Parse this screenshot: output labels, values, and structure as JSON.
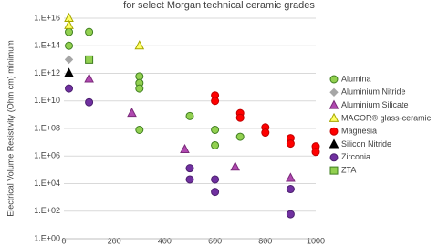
{
  "chart_data": {
    "type": "scatter",
    "title": "for select Morgan technical ceramic grades",
    "y_label": "Electrical Volume Resistivity (Ohm cm) minimum",
    "log_y": true,
    "grid": true,
    "legend": "right",
    "xlim": [
      0,
      1000
    ],
    "xticks": [
      0,
      200,
      400,
      600,
      800,
      1000
    ],
    "ylim": [
      1,
      10000000000000000
    ],
    "yticks": [
      {
        "value": 1,
        "label": "1.E+00"
      },
      {
        "value": 100,
        "label": "1.E+02"
      },
      {
        "value": 10000,
        "label": "1.E+04"
      },
      {
        "value": 1000000,
        "label": "1.E+06"
      },
      {
        "value": 100000000,
        "label": "1.E+08"
      },
      {
        "value": 10000000000,
        "label": "1.E+10"
      },
      {
        "value": 1000000000000,
        "label": "1.E+12"
      },
      {
        "value": 100000000000000,
        "label": "1.E+14"
      },
      {
        "value": 10000000000000000,
        "label": "1.E+16"
      }
    ],
    "series": [
      {
        "name": "Alumina",
        "color": "#92d050",
        "stroke": "#3e7d1f",
        "marker": "circle",
        "x": [
          20,
          20,
          100,
          300,
          300,
          300,
          300,
          500,
          600,
          600,
          700
        ],
        "values": [
          1000000000000000,
          100000000000000,
          1000000000000000,
          600000000000,
          200000000000,
          80000000000,
          80000000,
          800000000,
          80000000,
          6000000,
          25000000
        ]
      },
      {
        "name": "Aluminium Nitride",
        "color": "#a6a6a6",
        "stroke": "#a6a6a6",
        "marker": "diamond",
        "x": [
          20
        ],
        "values": [
          10000000000000
        ]
      },
      {
        "name": "Aluminium Silicate",
        "color": "#b048b0",
        "stroke": "#7a2a7a",
        "marker": "triangle",
        "x": [
          100,
          270,
          480,
          680,
          900
        ],
        "values": [
          400000000000,
          1300000000,
          3000000,
          160000,
          25000
        ]
      },
      {
        "name": "MACOR® glass-ceramic",
        "color": "#ffff66",
        "stroke": "#a6a600",
        "marker": "triangle",
        "x": [
          20,
          20,
          300
        ],
        "values": [
          10000000000000000,
          3000000000000000,
          100000000000000
        ]
      },
      {
        "name": "Magnesia",
        "color": "#ff0000",
        "stroke": "#c00000",
        "marker": "circle",
        "x": [
          600,
          600,
          700,
          700,
          800,
          800,
          900,
          900,
          1000,
          1000
        ],
        "values": [
          25000000000,
          10000000000,
          1300000000,
          600000000,
          120000000,
          50000000,
          20000000,
          8000000,
          5000000,
          2000000
        ]
      },
      {
        "name": "Silicon Nitride",
        "color": "#000000",
        "stroke": "#000000",
        "marker": "triangle",
        "x": [
          20
        ],
        "values": [
          1000000000000
        ]
      },
      {
        "name": "Zirconia",
        "color": "#7030a0",
        "stroke": "#4b1f6e",
        "marker": "circle",
        "x": [
          20,
          100,
          500,
          500,
          600,
          600,
          900,
          900
        ],
        "values": [
          80000000000,
          8000000000,
          130000,
          20000,
          20000,
          2500,
          4000,
          60
        ]
      },
      {
        "name": "ZTA",
        "color": "#92d050",
        "stroke": "#3e7d1f",
        "marker": "square",
        "x": [
          100
        ],
        "values": [
          10000000000000
        ]
      }
    ]
  }
}
